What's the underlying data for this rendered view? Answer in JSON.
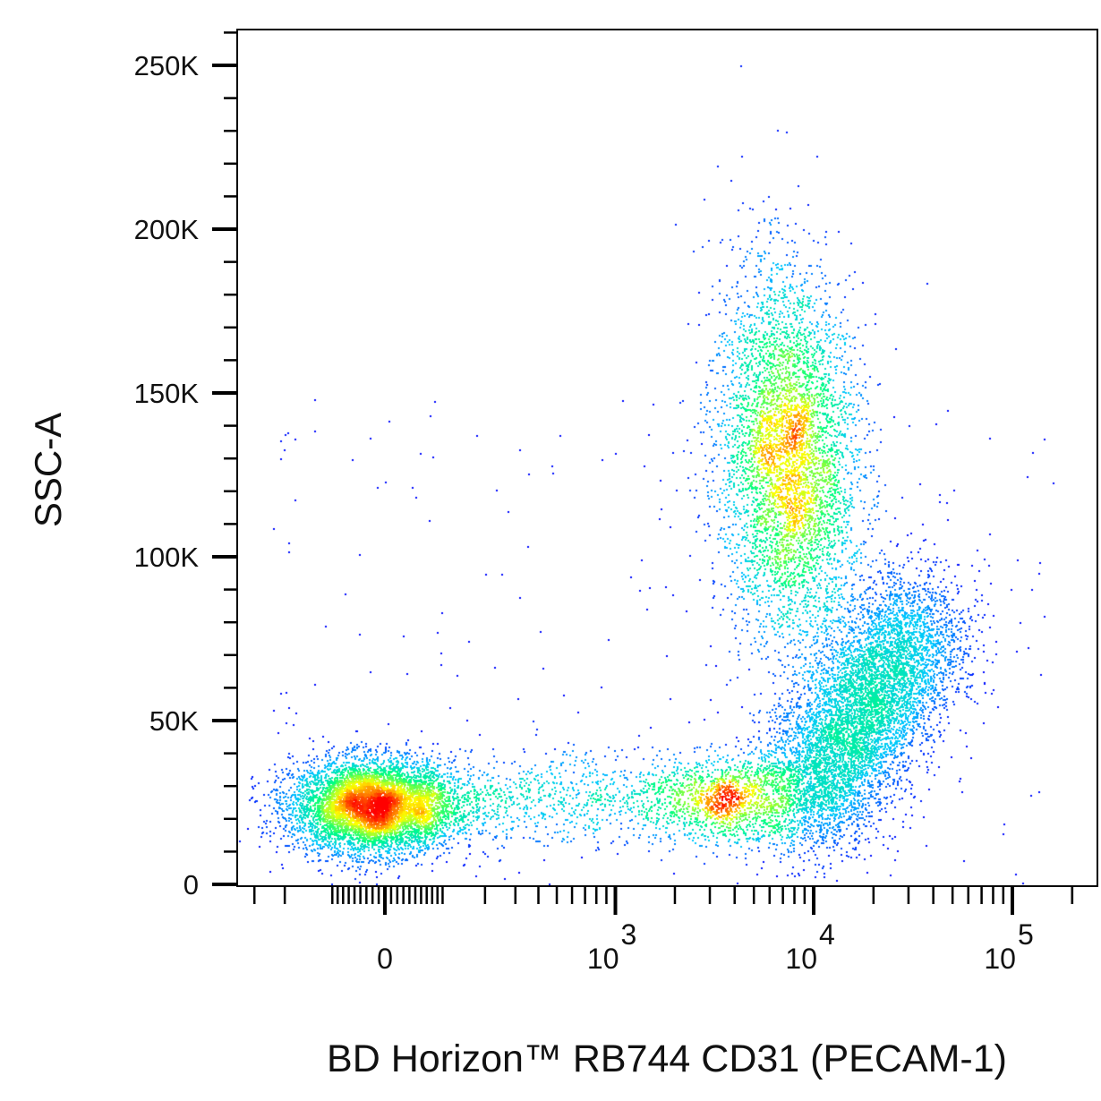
{
  "chart_data": {
    "type": "scatter",
    "subtype": "flow-cytometry pseudocolor density plot",
    "xlabel": "BD Horizon™ RB744 CD31 (PECAM-1)",
    "ylabel": "SSC-A",
    "x_scale": "biexponential",
    "y_scale": "linear",
    "ylim": [
      0,
      262144
    ],
    "xlim": [
      -400,
      150000
    ],
    "y_ticks": [
      {
        "value": 0,
        "label": "0"
      },
      {
        "value": 50000,
        "label": "50K"
      },
      {
        "value": 100000,
        "label": "100K"
      },
      {
        "value": 150000,
        "label": "150K"
      },
      {
        "value": 200000,
        "label": "200K"
      },
      {
        "value": 250000,
        "label": "250K"
      }
    ],
    "x_ticks": [
      {
        "value": 0,
        "label": "0",
        "base": "0",
        "exp": ""
      },
      {
        "value": 1000,
        "label": "10^3",
        "base": "10",
        "exp": "3"
      },
      {
        "value": 10000,
        "label": "10^4",
        "base": "10",
        "exp": "4"
      },
      {
        "value": 100000,
        "label": "10^5",
        "base": "10",
        "exp": "5"
      }
    ],
    "grid": false,
    "colormap": [
      "#0000ff",
      "#00c8ff",
      "#00ff80",
      "#ffff00",
      "#ff0000"
    ],
    "populations": [
      {
        "x_center": -20,
        "y_center": 24000,
        "events": 9000
      },
      {
        "x_center": 3500,
        "y_center": 23000,
        "events": 11000
      },
      {
        "x_center": 7400,
        "y_center": 130000,
        "events": 22000
      },
      {
        "x_center": 18000,
        "y_center": 55000,
        "events": 7000
      }
    ]
  }
}
